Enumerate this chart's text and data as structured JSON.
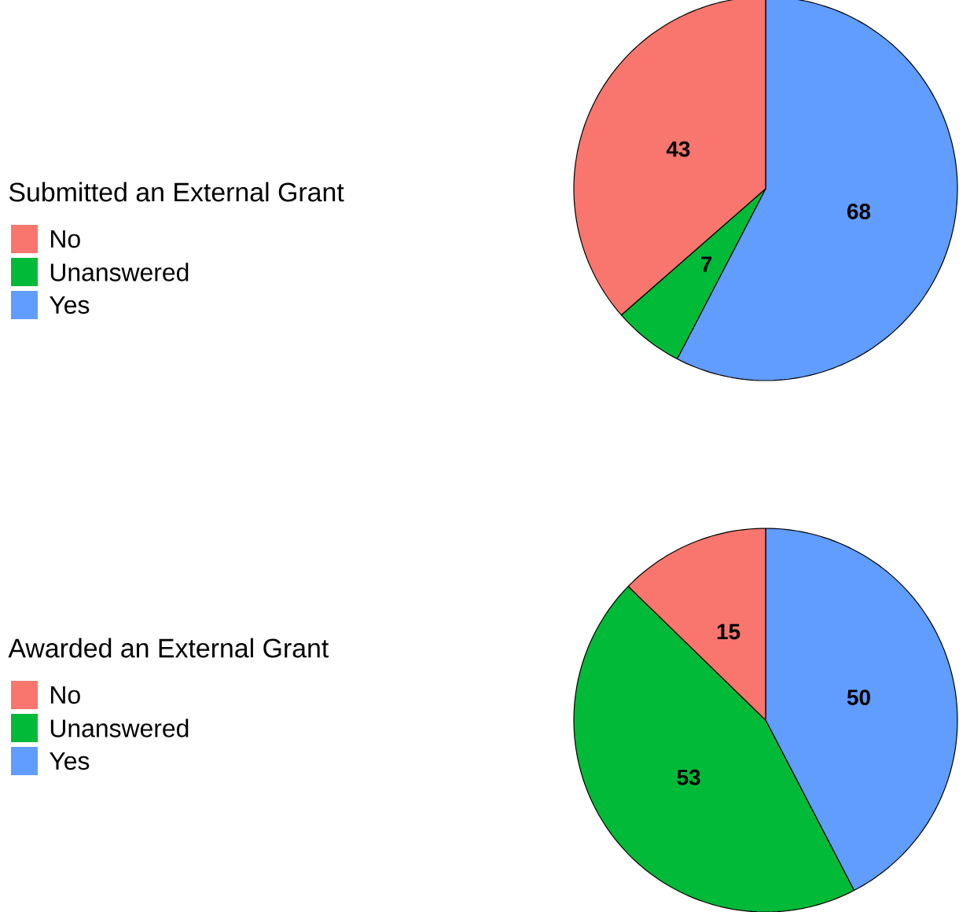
{
  "chart_data": [
    {
      "type": "pie",
      "legend_title": "Submitted an External Grant",
      "categories": [
        "No",
        "Unanswered",
        "Yes"
      ],
      "values": [
        43,
        7,
        68
      ],
      "colors": [
        "#f8766d",
        "#00ba38",
        "#619cff"
      ],
      "data_labels": true,
      "legend": "left"
    },
    {
      "type": "pie",
      "legend_title": "Awarded an External Grant",
      "categories": [
        "No",
        "Unanswered",
        "Yes"
      ],
      "values": [
        15,
        53,
        50
      ],
      "colors": [
        "#f8766d",
        "#00ba38",
        "#619cff"
      ],
      "data_labels": true,
      "legend": "left"
    }
  ]
}
